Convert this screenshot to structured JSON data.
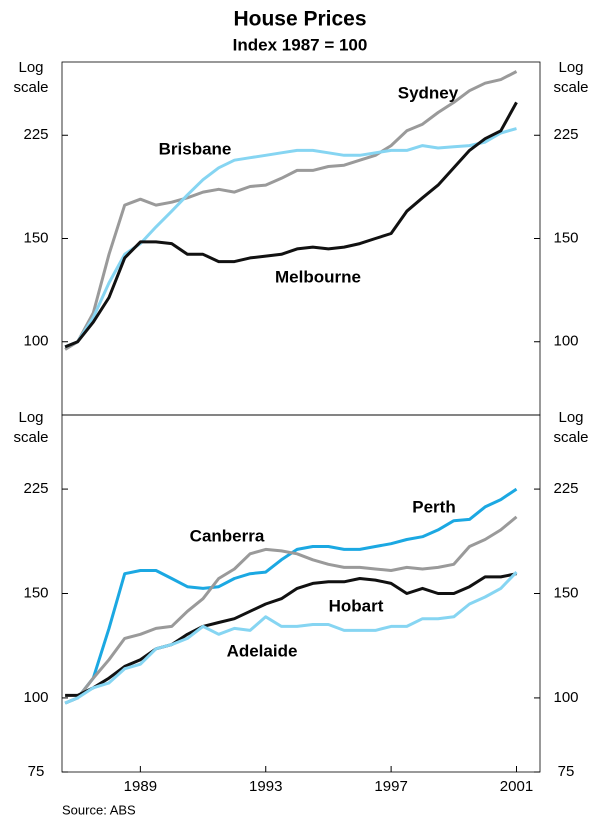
{
  "chart_data": [
    {
      "type": "line",
      "title": "House Prices",
      "subtitle": "Index 1987 = 100",
      "ylabel": "Log scale",
      "y2label": "Log scale",
      "yscale": "log",
      "grid": false,
      "xlim": [
        1986.5,
        2001.75
      ],
      "ylim": [
        75,
        300
      ],
      "yticks": [
        100,
        150,
        225
      ],
      "y2lim": [
        75,
        300
      ],
      "y2ticks": [
        100,
        150,
        225
      ],
      "x": [
        1986.6,
        1987.0,
        1987.5,
        1988.0,
        1988.5,
        1989.0,
        1989.5,
        1990.0,
        1990.5,
        1991.0,
        1991.5,
        1992.0,
        1992.5,
        1993.0,
        1993.5,
        1994.0,
        1994.5,
        1995.0,
        1995.5,
        1996.0,
        1996.5,
        1997.0,
        1997.5,
        1998.0,
        1998.5,
        1999.0,
        1999.5,
        2000.0,
        2000.5,
        2001.0
      ],
      "series": [
        {
          "name": "Sydney",
          "color": "#9a9a9a",
          "values": [
            97,
            100,
            112,
            141,
            171,
            175,
            171,
            173,
            176,
            180,
            182,
            180,
            184,
            185,
            190,
            196,
            196,
            199,
            200,
            204,
            208,
            216,
            229,
            235,
            246,
            256,
            268,
            276,
            280,
            289
          ]
        },
        {
          "name": "Brisbane",
          "color": "#86d5f2",
          "values": [
            98,
            100,
            110,
            126,
            141,
            147,
            157,
            167,
            178,
            189,
            198,
            204,
            206,
            208,
            210,
            212,
            212,
            210,
            208,
            208,
            210,
            212,
            212,
            216,
            214,
            215,
            216,
            219,
            227,
            231
          ]
        },
        {
          "name": "Melbourne",
          "color": "#111111",
          "values": [
            98,
            100,
            108,
            119,
            139,
            148,
            148,
            147,
            141,
            141,
            137,
            137,
            139,
            140,
            141,
            144,
            145,
            144,
            145,
            147,
            150,
            153,
            167,
            176,
            185,
            198,
            212,
            222,
            229,
            256
          ]
        }
      ]
    },
    {
      "type": "line",
      "note": "Source: ABS",
      "ylabel": "Log scale",
      "y2label": "Log scale",
      "yscale": "log",
      "grid": false,
      "xlim": [
        1986.5,
        2001.75
      ],
      "xticks": [
        1989,
        1993,
        1997,
        2001
      ],
      "ylim": [
        75,
        300
      ],
      "yticks": [
        75,
        100,
        150,
        225
      ],
      "y2lim": [
        75,
        300
      ],
      "y2ticks": [
        75,
        100,
        150,
        225
      ],
      "x": [
        1986.6,
        1987.0,
        1987.5,
        1988.0,
        1988.5,
        1989.0,
        1989.5,
        1990.0,
        1990.5,
        1991.0,
        1991.5,
        1992.0,
        1992.5,
        1993.0,
        1993.5,
        1994.0,
        1994.5,
        1995.0,
        1995.5,
        1996.0,
        1996.5,
        1997.0,
        1997.5,
        1998.0,
        1998.5,
        1999.0,
        1999.5,
        2000.0,
        2000.5,
        2001.0
      ],
      "series": [
        {
          "name": "Perth",
          "color": "#1ba8e2",
          "values": [
            98,
            100,
            108,
            131,
            162,
            164,
            164,
            159,
            154,
            153,
            154,
            159,
            162,
            163,
            171,
            178,
            180,
            180,
            178,
            178,
            180,
            182,
            185,
            187,
            192,
            199,
            200,
            210,
            216,
            225
          ]
        },
        {
          "name": "Canberra",
          "color": "#9a9a9a",
          "values": [
            98,
            100,
            108,
            116,
            126,
            128,
            131,
            132,
            140,
            147,
            159,
            165,
            175,
            178,
            177,
            175,
            171,
            168,
            166,
            166,
            165,
            164,
            166,
            165,
            166,
            168,
            180,
            185,
            192,
            202
          ]
        },
        {
          "name": "Hobart",
          "color": "#111111",
          "values": [
            101,
            101,
            104,
            108,
            113,
            116,
            121,
            123,
            128,
            132,
            134,
            136,
            140,
            144,
            147,
            153,
            156,
            157,
            157,
            159,
            158,
            156,
            150,
            153,
            150,
            150,
            154,
            160,
            160,
            162
          ]
        },
        {
          "name": "Adelaide",
          "color": "#86d5f2",
          "values": [
            98,
            100,
            104,
            106,
            112,
            114,
            121,
            123,
            126,
            132,
            128,
            131,
            130,
            137,
            132,
            132,
            133,
            133,
            130,
            130,
            130,
            132,
            132,
            136,
            136,
            137,
            144,
            148,
            153,
            163
          ]
        }
      ]
    }
  ]
}
